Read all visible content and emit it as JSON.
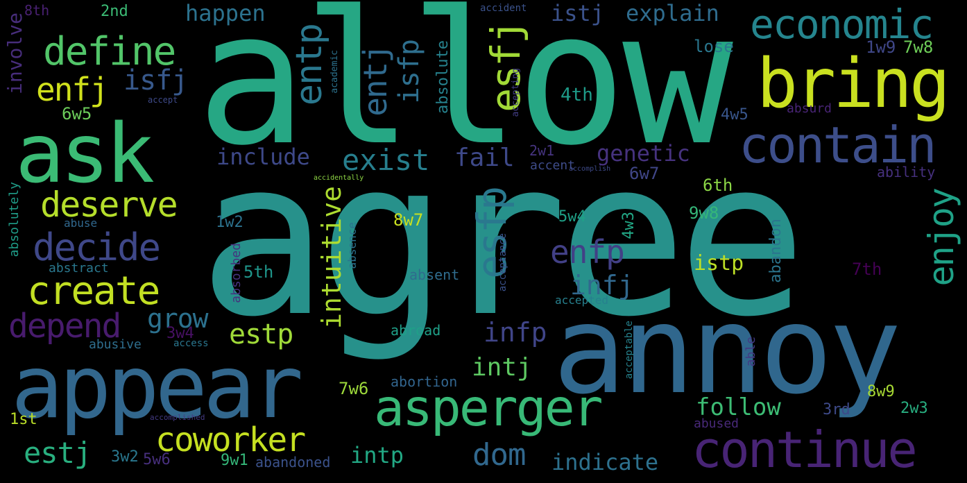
{
  "words": [
    {
      "text": "allow",
      "color": "#26a784"
    },
    {
      "text": "agree",
      "color": "#27918b"
    },
    {
      "text": "annoy",
      "color": "#30678d"
    },
    {
      "text": "appear",
      "color": "#32678d"
    },
    {
      "text": "ask",
      "color": "#3bbb75"
    },
    {
      "text": "bring",
      "color": "#c9e020"
    },
    {
      "text": "asperger",
      "color": "#38b977"
    },
    {
      "text": "contain",
      "color": "#3d4e8a"
    },
    {
      "text": "continue",
      "color": "#482475"
    },
    {
      "text": "economic",
      "color": "#25858e"
    },
    {
      "text": "define",
      "color": "#52c569"
    },
    {
      "text": "enfj",
      "color": "#d0e11c"
    },
    {
      "text": "entp",
      "color": "#2a788e"
    },
    {
      "text": "entj",
      "color": "#306a8e"
    },
    {
      "text": "esfj",
      "color": "#a2da37"
    },
    {
      "text": "isfp",
      "color": "#2e6f8e"
    },
    {
      "text": "isfj",
      "color": "#38598c"
    },
    {
      "text": "deserve",
      "color": "#b5de2b"
    },
    {
      "text": "decide",
      "color": "#3f4889"
    },
    {
      "text": "create",
      "color": "#c2df23"
    },
    {
      "text": "depend",
      "color": "#481b6d"
    },
    {
      "text": "grow",
      "color": "#2c718e"
    },
    {
      "text": "estp",
      "color": "#a0da39"
    },
    {
      "text": "esfp",
      "color": "#2a788e"
    },
    {
      "text": "enfp",
      "color": "#424086"
    },
    {
      "text": "enjoy",
      "color": "#1fa287"
    },
    {
      "text": "include",
      "color": "#3e4989"
    },
    {
      "text": "exist",
      "color": "#277f8e"
    },
    {
      "text": "fail",
      "color": "#3e4989"
    },
    {
      "text": "genetic",
      "color": "#46327e"
    },
    {
      "text": "intuitive",
      "color": "#addc30"
    },
    {
      "text": "infj",
      "color": "#31688e"
    },
    {
      "text": "infp",
      "color": "#404588"
    },
    {
      "text": "intj",
      "color": "#5ec962"
    },
    {
      "text": "estj",
      "color": "#29af7f"
    },
    {
      "text": "coworker",
      "color": "#c5e021"
    },
    {
      "text": "dom",
      "color": "#31688e"
    },
    {
      "text": "indicate",
      "color": "#2d718e"
    },
    {
      "text": "intp",
      "color": "#22a884"
    },
    {
      "text": "follow",
      "color": "#3dbc74"
    },
    {
      "text": "happen",
      "color": "#2c728e"
    },
    {
      "text": "istj",
      "color": "#3b528b"
    },
    {
      "text": "explain",
      "color": "#2f6c8e"
    },
    {
      "text": "involve",
      "color": "#472d7b"
    },
    {
      "text": "lose",
      "color": "#2a778e"
    },
    {
      "text": "istp",
      "color": "#bddf26"
    },
    {
      "text": "2nd",
      "color": "#3bbb75"
    },
    {
      "text": "8th",
      "color": "#482071"
    },
    {
      "text": "1w9",
      "color": "#3f4788"
    },
    {
      "text": "7w8",
      "color": "#6ece58"
    },
    {
      "text": "6w5",
      "color": "#6ccd5a"
    },
    {
      "text": "4th",
      "color": "#1e9c89"
    },
    {
      "text": "4w5",
      "color": "#39568c"
    },
    {
      "text": "2w1",
      "color": "#463480"
    },
    {
      "text": "6w7",
      "color": "#404688"
    },
    {
      "text": "6th",
      "color": "#8bd646"
    },
    {
      "text": "4w3",
      "color": "#22a785"
    },
    {
      "text": "5w4",
      "color": "#1fa187"
    },
    {
      "text": "9w8",
      "color": "#35b779"
    },
    {
      "text": "1w2",
      "color": "#2c728e"
    },
    {
      "text": "8w7",
      "color": "#c8e020"
    },
    {
      "text": "5th",
      "color": "#1f968b"
    },
    {
      "text": "7th",
      "color": "#440154"
    },
    {
      "text": "3w4",
      "color": "#471063"
    },
    {
      "text": "7w6",
      "color": "#9dd93b"
    },
    {
      "text": "8w9",
      "color": "#a8db34"
    },
    {
      "text": "3rd",
      "color": "#3e4a89"
    },
    {
      "text": "2w3",
      "color": "#28ae80"
    },
    {
      "text": "1st",
      "color": "#bade28"
    },
    {
      "text": "3w2",
      "color": "#2a778e"
    },
    {
      "text": "5w6",
      "color": "#472f7d"
    },
    {
      "text": "9w1",
      "color": "#35b779"
    },
    {
      "text": "absolute",
      "color": "#26828e"
    },
    {
      "text": "ability",
      "color": "#46307e"
    },
    {
      "text": "absurd",
      "color": "#482475"
    },
    {
      "text": "accent",
      "color": "#3e4c8a"
    },
    {
      "text": "absolutely",
      "color": "#1f9e89"
    },
    {
      "text": "abuse",
      "color": "#31688e"
    },
    {
      "text": "abstract",
      "color": "#2a788e"
    },
    {
      "text": "absorbed",
      "color": "#46327e"
    },
    {
      "text": "absence",
      "color": "#2c728e"
    },
    {
      "text": "absent",
      "color": "#2f6c8e"
    },
    {
      "text": "abandon",
      "color": "#2b758e"
    },
    {
      "text": "acceptance",
      "color": "#3b528b"
    },
    {
      "text": "accepted",
      "color": "#27808e"
    },
    {
      "text": "abroad",
      "color": "#1fa088"
    },
    {
      "text": "abusive",
      "color": "#2e6e8e"
    },
    {
      "text": "access",
      "color": "#2a768e"
    },
    {
      "text": "abortion",
      "color": "#32658e"
    },
    {
      "text": "abandoned",
      "color": "#3b528b"
    },
    {
      "text": "abused",
      "color": "#482979"
    },
    {
      "text": "acceptable",
      "color": "#26828e"
    },
    {
      "text": "able",
      "color": "#443983"
    },
    {
      "text": "accomplished",
      "color": "#443a83"
    },
    {
      "text": "accept",
      "color": "#3e4a89"
    },
    {
      "text": "academic",
      "color": "#2c728e"
    },
    {
      "text": "accepting",
      "color": "#433e85"
    },
    {
      "text": "accident",
      "color": "#3b528b"
    },
    {
      "text": "accomplish",
      "color": "#3e4a89"
    },
    {
      "text": "accidentally",
      "color": "#8fd744"
    }
  ]
}
